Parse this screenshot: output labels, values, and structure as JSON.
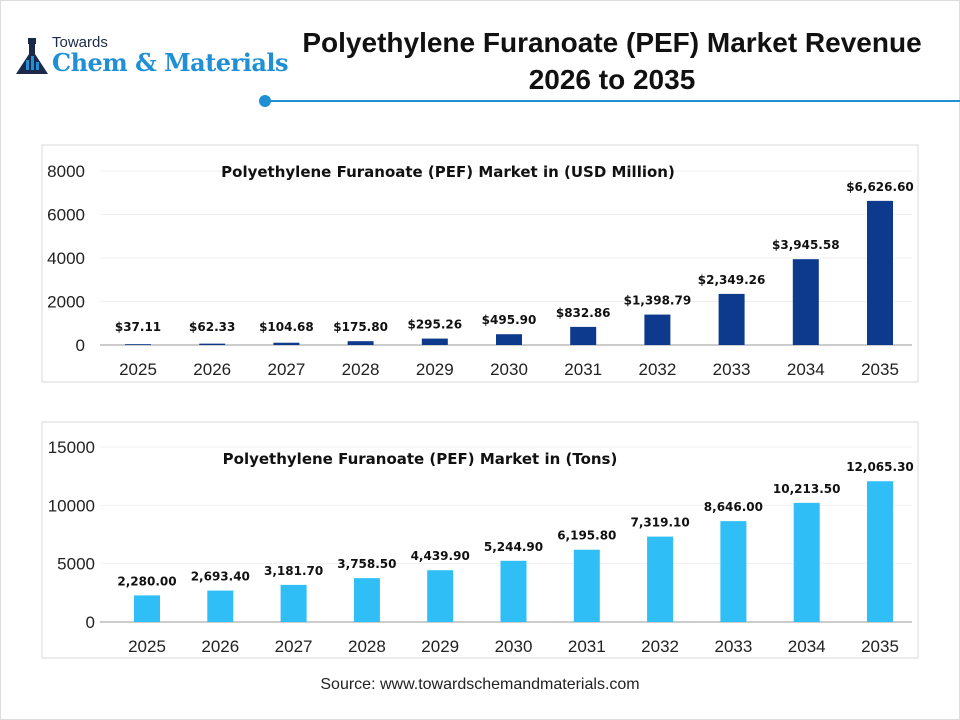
{
  "logo": {
    "line1": "Towards",
    "line2": "Chem & Materials"
  },
  "title": {
    "line1": "Polyethylene Furanoate (PEF) Market Revenue",
    "line2": "2026 to 2035"
  },
  "source": "Source: www.towardschemandmaterials.com",
  "colors": {
    "accent": "#1f8fd6",
    "series1": "#0d3a8c",
    "series2": "#2fbef5"
  },
  "chart_data": [
    {
      "type": "bar",
      "title": "Polyethylene Furanoate (PEF) Market in (USD Million)",
      "categories": [
        "2025",
        "2026",
        "2027",
        "2028",
        "2029",
        "2030",
        "2031",
        "2032",
        "2033",
        "2034",
        "2035"
      ],
      "values": [
        37.11,
        62.33,
        104.68,
        175.8,
        295.26,
        495.9,
        832.86,
        1398.79,
        2349.26,
        3945.58,
        6626.6
      ],
      "labels": [
        "$37.11",
        "$62.33",
        "$104.68",
        "$175.80",
        "$295.26",
        "$495.90",
        "$832.86",
        "$1,398.79",
        "$2,349.26",
        "$3,945.58",
        "$6,626.60"
      ],
      "yticks": [
        "0",
        "2000",
        "4000",
        "6000",
        "8000"
      ],
      "ylim": [
        0,
        8000
      ],
      "grid": true
    },
    {
      "type": "bar",
      "title": "Polyethylene Furanoate (PEF) Market in (Tons)",
      "categories": [
        "2025",
        "2026",
        "2027",
        "2028",
        "2029",
        "2030",
        "2031",
        "2032",
        "2033",
        "2034",
        "2035"
      ],
      "values": [
        2280.0,
        2693.4,
        3181.7,
        3758.5,
        4439.9,
        5244.9,
        6195.8,
        7319.1,
        8646.0,
        10213.5,
        12065.3
      ],
      "labels": [
        "2,280.00",
        "2,693.40",
        "3,181.70",
        "3,758.50",
        "4,439.90",
        "5,244.90",
        "6,195.80",
        "7,319.10",
        "8,646.00",
        "10,213.50",
        "12,065.30"
      ],
      "yticks": [
        "0",
        "5000",
        "10000",
        "15000"
      ],
      "ylim": [
        0,
        15000
      ],
      "grid": true
    }
  ]
}
